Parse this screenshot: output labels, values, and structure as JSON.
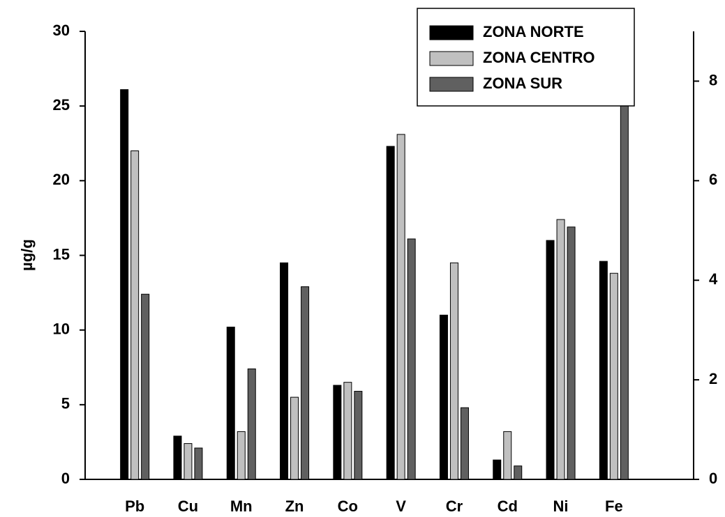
{
  "chart_data": {
    "type": "bar",
    "ylabel": "µg/g",
    "categories": [
      "Pb",
      "Cu",
      "Mn",
      "Zn",
      "Co",
      "V",
      "Cr",
      "Cd",
      "Ni",
      "Fe"
    ],
    "series": [
      {
        "name": "ZONA NORTE",
        "color": "#000000",
        "values": [
          26.1,
          2.9,
          10.2,
          14.5,
          6.3,
          22.3,
          11.0,
          1.3,
          16.0,
          14.6
        ]
      },
      {
        "name": "ZONA CENTRO",
        "color": "#c0c0c0",
        "values": [
          22.0,
          2.4,
          3.2,
          5.5,
          6.5,
          23.1,
          14.5,
          3.2,
          17.4,
          13.8
        ]
      },
      {
        "name": "ZONA SUR",
        "color": "#606060",
        "values": [
          12.4,
          2.1,
          7.4,
          12.9,
          5.9,
          16.1,
          4.8,
          0.9,
          16.9,
          26.5
        ]
      }
    ],
    "ylim": [
      0,
      30
    ],
    "yticks": [
      0,
      5,
      10,
      15,
      20,
      25,
      30
    ],
    "y2lim": [
      0,
      9
    ],
    "y2ticks": [
      0,
      2,
      4,
      6,
      8
    ]
  }
}
